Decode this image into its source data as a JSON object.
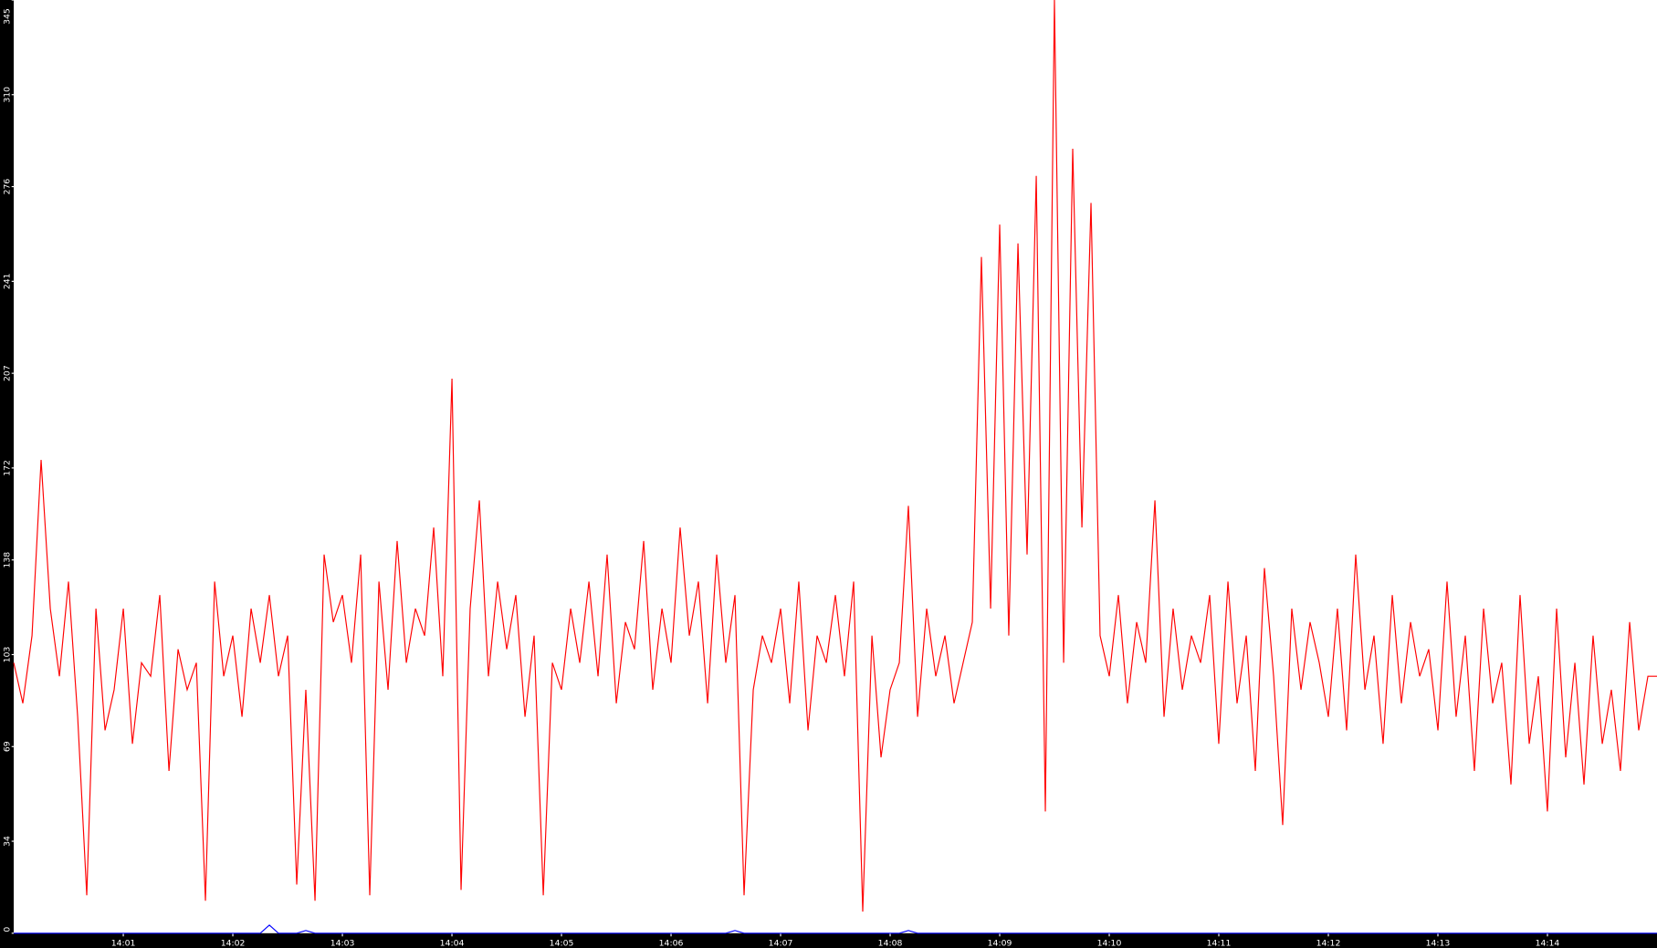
{
  "chart_data": {
    "type": "line",
    "title": "",
    "xlabel": "",
    "ylabel": "",
    "ylim": [
      0,
      345
    ],
    "y_ticks": [
      "0",
      "34",
      "69",
      "103",
      "138",
      "172",
      "207",
      "241",
      "276",
      "310",
      "345"
    ],
    "x_ticks": [
      "14:01",
      "14:02",
      "14:03",
      "14:04",
      "14:05",
      "14:06",
      "14:07",
      "14:08",
      "14:09",
      "14:10",
      "14:11",
      "14:12",
      "14:13",
      "14:14"
    ],
    "x_range": [
      "14:00:00",
      "14:15:00"
    ],
    "x_step_seconds": 5,
    "grid": false,
    "background": "#ffffff",
    "axis_color": "#000000",
    "series": [
      {
        "color": "#ff0000",
        "values": [
          100,
          85,
          110,
          175,
          120,
          95,
          130,
          80,
          14,
          120,
          75,
          90,
          120,
          70,
          100,
          95,
          125,
          60,
          105,
          90,
          100,
          12,
          130,
          95,
          110,
          80,
          120,
          100,
          125,
          95,
          110,
          18,
          90,
          12,
          140,
          115,
          125,
          100,
          140,
          14,
          130,
          90,
          145,
          100,
          120,
          110,
          150,
          95,
          205,
          16,
          120,
          160,
          95,
          130,
          105,
          125,
          80,
          110,
          14,
          100,
          90,
          120,
          100,
          130,
          95,
          140,
          85,
          115,
          105,
          145,
          90,
          120,
          100,
          150,
          110,
          130,
          85,
          140,
          100,
          125,
          14,
          90,
          110,
          100,
          120,
          85,
          130,
          75,
          110,
          100,
          125,
          95,
          130,
          8,
          110,
          65,
          90,
          100,
          158,
          80,
          120,
          95,
          110,
          85,
          100,
          115,
          250,
          120,
          262,
          110,
          255,
          140,
          280,
          45,
          345,
          100,
          290,
          150,
          270,
          110,
          95,
          125,
          85,
          115,
          100,
          160,
          80,
          120,
          90,
          110,
          100,
          125,
          70,
          130,
          85,
          110,
          60,
          135,
          95,
          40,
          120,
          90,
          115,
          100,
          80,
          120,
          75,
          140,
          90,
          110,
          70,
          125,
          85,
          115,
          95,
          105,
          75,
          130,
          80,
          110,
          60,
          120,
          85,
          100,
          55,
          125,
          70,
          95,
          45,
          120,
          65,
          100,
          55,
          110,
          70,
          90,
          60,
          115,
          75,
          95
        ]
      },
      {
        "color": "#0000ff",
        "values": [
          0,
          0,
          0,
          0,
          0,
          0,
          0,
          0,
          0,
          0,
          0,
          0,
          0,
          0,
          0,
          0,
          0,
          0,
          0,
          0,
          0,
          0,
          0,
          0,
          0,
          0,
          0,
          0,
          3,
          0,
          0,
          0,
          1,
          0,
          0,
          0,
          0,
          0,
          0,
          0,
          0,
          0,
          0,
          0,
          0,
          0,
          0,
          0,
          0,
          0,
          0,
          0,
          0,
          0,
          0,
          0,
          0,
          0,
          0,
          0,
          0,
          0,
          0,
          0,
          0,
          0,
          0,
          0,
          0,
          0,
          0,
          0,
          0,
          0,
          0,
          0,
          0,
          0,
          0,
          1,
          0,
          0,
          0,
          0,
          0,
          0,
          0,
          0,
          0,
          0,
          0,
          0,
          0,
          0,
          0,
          0,
          0,
          0,
          1,
          0,
          0,
          0,
          0,
          0,
          0,
          0,
          0,
          0,
          0,
          0,
          0,
          0,
          0,
          0,
          0,
          0,
          0,
          0,
          0,
          0,
          0,
          0,
          0,
          0,
          0,
          0,
          0,
          0,
          0,
          0,
          0,
          0,
          0,
          0,
          0,
          0,
          0,
          0,
          0,
          0,
          0,
          0,
          0,
          0,
          0,
          0,
          0,
          0,
          0,
          0,
          0,
          0,
          0,
          0,
          0,
          0,
          0,
          0,
          0,
          0,
          0,
          0,
          0,
          0,
          0,
          0,
          0,
          0,
          0,
          0,
          0,
          0,
          0,
          0,
          0,
          0,
          0,
          0,
          0,
          0
        ]
      }
    ]
  }
}
